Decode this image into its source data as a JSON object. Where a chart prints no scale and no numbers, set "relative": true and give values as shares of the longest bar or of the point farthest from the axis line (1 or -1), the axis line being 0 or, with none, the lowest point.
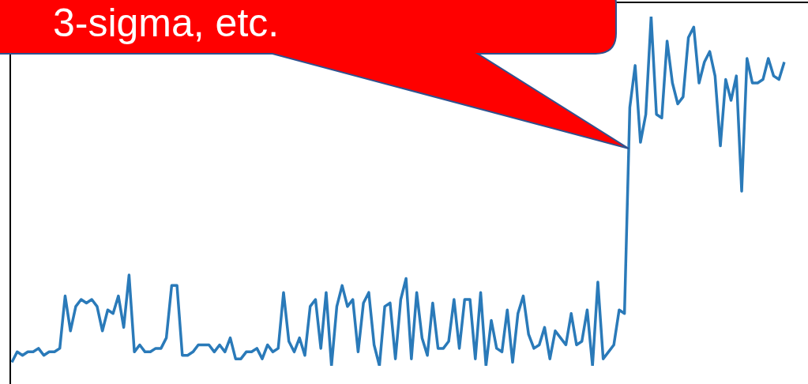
{
  "chart_data": {
    "type": "line",
    "relative": true,
    "color": "#2a7ab9",
    "legend": false,
    "marker": "none",
    "line_style": "solid",
    "annotations": [
      "3-sigma, etc."
    ],
    "values": [
      0.01,
      0.04,
      0.03,
      0.04,
      0.04,
      0.05,
      0.03,
      0.04,
      0.04,
      0.05,
      0.2,
      0.1,
      0.17,
      0.19,
      0.18,
      0.19,
      0.17,
      0.1,
      0.16,
      0.15,
      0.2,
      0.11,
      0.26,
      0.04,
      0.06,
      0.04,
      0.04,
      0.05,
      0.05,
      0.08,
      0.23,
      0.23,
      0.03,
      0.03,
      0.04,
      0.06,
      0.06,
      0.06,
      0.04,
      0.06,
      0.04,
      0.08,
      0.02,
      0.02,
      0.04,
      0.04,
      0.05,
      0.02,
      0.06,
      0.04,
      0.05,
      0.21,
      0.07,
      0.04,
      0.08,
      0.03,
      0.17,
      0.19,
      0.05,
      0.21,
      0.0,
      0.17,
      0.23,
      0.17,
      0.19,
      0.04,
      0.18,
      0.21,
      0.06,
      0.0,
      0.17,
      0.18,
      0.02,
      0.19,
      0.25,
      0.02,
      0.21,
      0.08,
      0.03,
      0.18,
      0.05,
      0.05,
      0.07,
      0.19,
      0.05,
      0.19,
      0.19,
      0.02,
      0.21,
      0.0,
      0.13,
      0.05,
      0.04,
      0.16,
      0.01,
      0.15,
      0.2,
      0.09,
      0.05,
      0.06,
      0.11,
      0.02,
      0.1,
      0.08,
      0.06,
      0.15,
      0.06,
      0.07,
      0.16,
      0,
      0.24,
      0.02,
      0.04,
      0.06,
      0.16,
      0.15,
      0.74,
      0.86,
      0.64,
      0.72,
      1,
      0.72,
      0.71,
      0.93,
      0.81,
      0.75,
      0.77,
      0.94,
      0.97,
      0.81,
      0.87,
      0.9,
      0.83,
      0.63,
      0.82,
      0.76,
      0.83,
      0.5,
      0.88,
      0.81,
      0.81,
      0.82,
      0.88,
      0.83,
      0.82,
      0.87
    ]
  }
}
